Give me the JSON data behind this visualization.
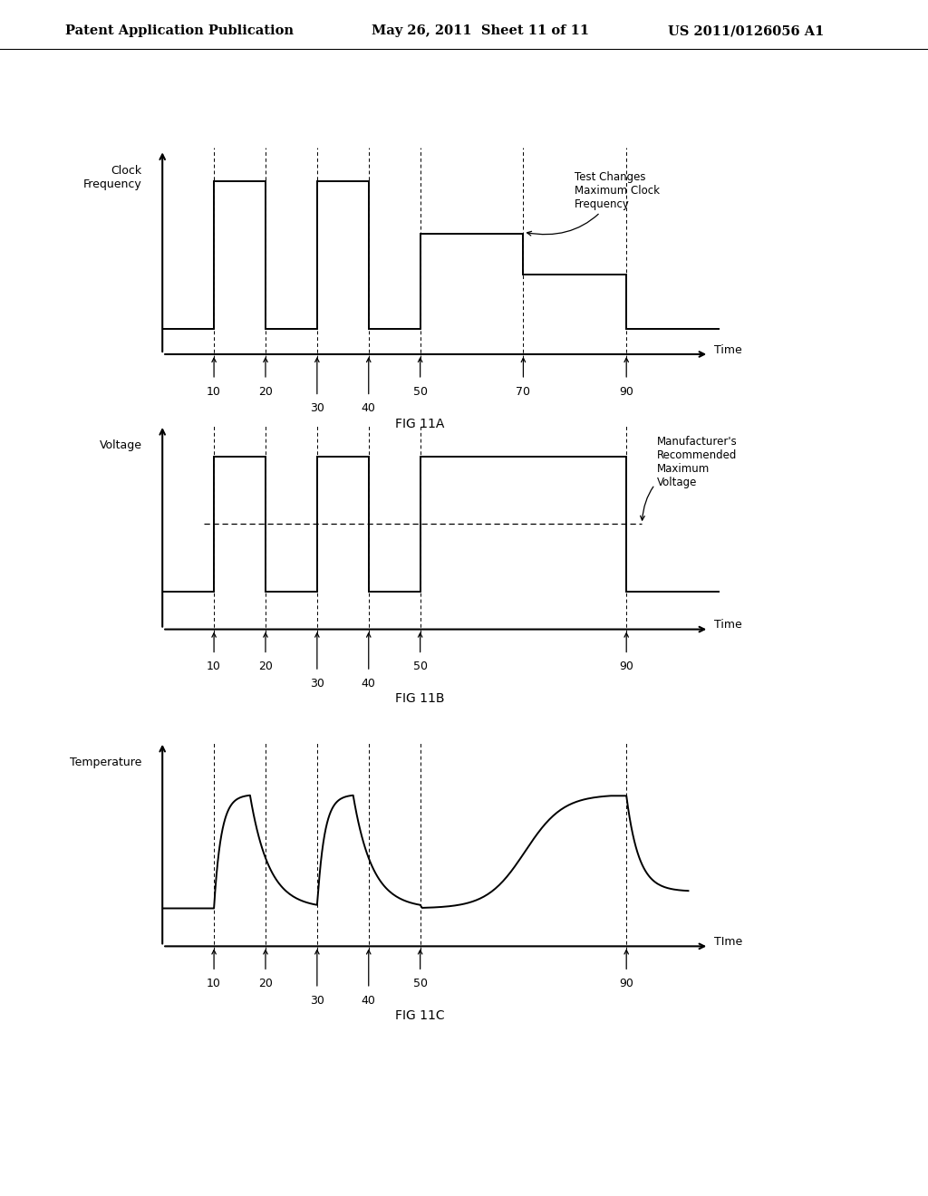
{
  "header_left": "Patent Application Publication",
  "header_mid": "May 26, 2011  Sheet 11 of 11",
  "header_right": "US 2011/0126056 A1",
  "fig_labels": [
    "FIG 11A",
    "FIG 11B",
    "FIG 11C"
  ],
  "ylabel_A": "Clock\nFrequency",
  "ylabel_B": "Voltage",
  "ylabel_C": "Temperature",
  "xlabel_A": "Time",
  "xlabel_B": "Time",
  "xlabel_C": "TIme",
  "annotation_A": "Test Changes\nMaximum Clock\nFrequency",
  "annotation_B": "Manufacturer's\nRecommended\nMaximum\nVoltage",
  "background_color": "#ffffff",
  "line_color": "#000000"
}
